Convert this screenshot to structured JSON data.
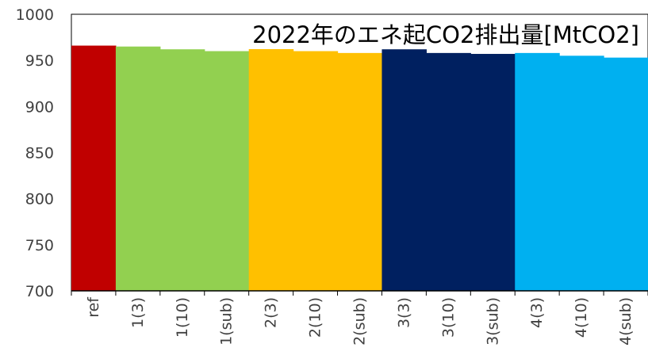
{
  "chart_data": {
    "type": "bar",
    "title": "2022年のエネ起CO2排出量[MtCO2]",
    "xlabel": "",
    "ylabel": "",
    "ylim": [
      700,
      1000
    ],
    "yticks": [
      700,
      750,
      800,
      850,
      900,
      950,
      1000
    ],
    "grid": false,
    "categories": [
      "ref",
      "1(3)",
      "1(10)",
      "1(sub)",
      "2(3)",
      "2(10)",
      "2(sub)",
      "3(3)",
      "3(10)",
      "3(sub)",
      "4(3)",
      "4(10)",
      "4(sub)"
    ],
    "values": [
      966,
      965,
      962,
      960,
      964,
      960,
      958,
      962,
      958,
      957,
      958,
      955,
      953
    ],
    "colors": [
      "#C00000",
      "#92D050",
      "#92D050",
      "#92D050",
      "#FFC000",
      "#FFC000",
      "#FFC000",
      "#002060",
      "#002060",
      "#002060",
      "#00B0F0",
      "#00B0F0",
      "#00B0F0"
    ]
  }
}
